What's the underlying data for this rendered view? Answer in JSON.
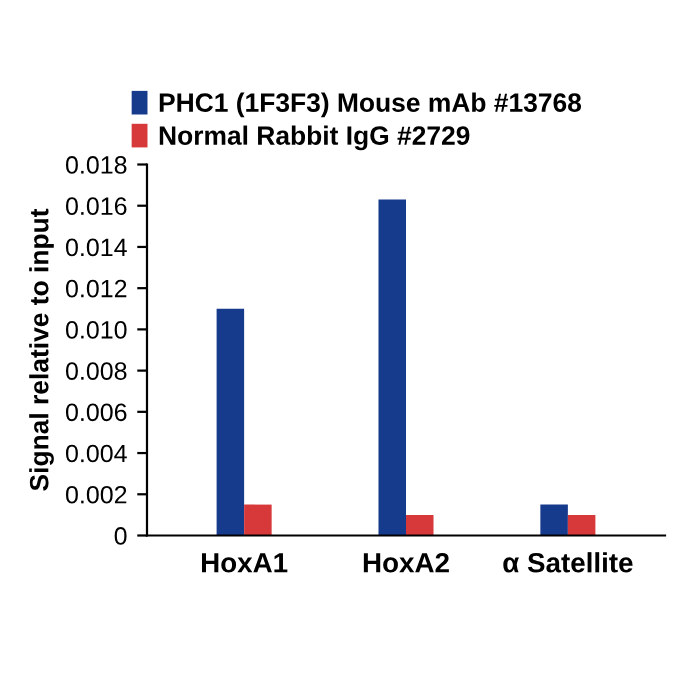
{
  "chart_data": {
    "type": "bar",
    "ylabel": "Signal relative to input",
    "categories": [
      "HoxA1",
      "HoxA2",
      "α Satellite"
    ],
    "series": [
      {
        "name": "PHC1 (1F3F3) Mouse mAb #13768",
        "color": "#163a8c",
        "values": [
          0.011,
          0.0163,
          0.0015
        ]
      },
      {
        "name": "Normal Rabbit IgG #2729",
        "color": "#d7393b",
        "values": [
          0.0015,
          0.001,
          0.001
        ]
      }
    ],
    "ylim": [
      0,
      0.018
    ],
    "yticks": [
      {
        "value": 0,
        "label": "0"
      },
      {
        "value": 0.002,
        "label": "0.002"
      },
      {
        "value": 0.004,
        "label": "0.004"
      },
      {
        "value": 0.006,
        "label": "0.006"
      },
      {
        "value": 0.008,
        "label": "0.008"
      },
      {
        "value": 0.01,
        "label": "0.010"
      },
      {
        "value": 0.012,
        "label": "0.012"
      },
      {
        "value": 0.014,
        "label": "0.014"
      },
      {
        "value": 0.016,
        "label": "0.016"
      },
      {
        "value": 0.018,
        "label": "0.018"
      }
    ],
    "grid": false,
    "legend": "top left"
  }
}
